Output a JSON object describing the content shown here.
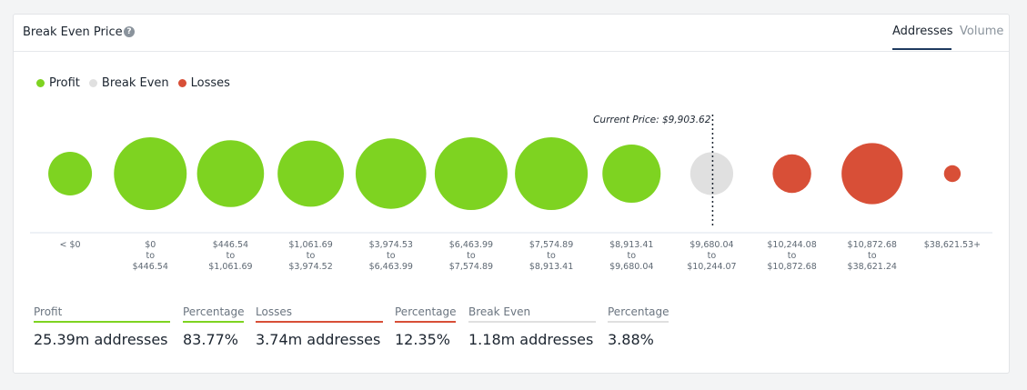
{
  "header": {
    "title": "Break Even Price",
    "help_icon": "question-circle-icon",
    "tabs": [
      {
        "label": "Addresses",
        "active": true
      },
      {
        "label": "Volume",
        "active": false
      }
    ]
  },
  "colors": {
    "profit": "#7ed321",
    "break_even": "#e0e0e0",
    "losses": "#d84f37",
    "accent": "#1e3a5f"
  },
  "legend": {
    "profit": "Profit",
    "break_even": "Break Even",
    "losses": "Losses"
  },
  "chart_data": {
    "type": "bubble",
    "current_price_label": "Current Price: $9,903.62",
    "current_price": 9903.62,
    "buckets": [
      {
        "range": [
          "< $0"
        ],
        "status": "profit",
        "size": 0.6
      },
      {
        "range": [
          "$0",
          "to",
          "$446.54"
        ],
        "status": "profit",
        "size": 1.0
      },
      {
        "range": [
          "$446.54",
          "to",
          "$1,061.69"
        ],
        "status": "profit",
        "size": 0.92
      },
      {
        "range": [
          "$1,061.69",
          "to",
          "$3,974.52"
        ],
        "status": "profit",
        "size": 0.91
      },
      {
        "range": [
          "$3,974.53",
          "to",
          "$6,463.99"
        ],
        "status": "profit",
        "size": 0.97
      },
      {
        "range": [
          "$6,463.99",
          "to",
          "$7,574.89"
        ],
        "status": "profit",
        "size": 1.0
      },
      {
        "range": [
          "$7,574.89",
          "to",
          "$8,913.41"
        ],
        "status": "profit",
        "size": 1.0
      },
      {
        "range": [
          "$8,913.41",
          "to",
          "$9,680.04"
        ],
        "status": "profit",
        "size": 0.8
      },
      {
        "range": [
          "$9,680.04",
          "to",
          "$10,244.07"
        ],
        "status": "break_even",
        "size": 0.59
      },
      {
        "range": [
          "$10,244.08",
          "to",
          "$10,872.68"
        ],
        "status": "losses",
        "size": 0.53
      },
      {
        "range": [
          "$10,872.68",
          "to",
          "$38,621.24"
        ],
        "status": "losses",
        "size": 0.84
      },
      {
        "range": [
          "$38,621.53+"
        ],
        "status": "losses",
        "size": 0.23
      }
    ]
  },
  "stats": [
    {
      "label": "Profit",
      "value": "25.39m addresses",
      "color": "#7ed321"
    },
    {
      "label": "Percentage",
      "value": "83.77%",
      "color": "#7ed321"
    },
    {
      "label": "Losses",
      "value": "3.74m addresses",
      "color": "#d84f37"
    },
    {
      "label": "Percentage",
      "value": "12.35%",
      "color": "#d84f37"
    },
    {
      "label": "Break Even",
      "value": "1.18m addresses",
      "color": "#e0e0e0"
    },
    {
      "label": "Percentage",
      "value": "3.88%",
      "color": "#e0e0e0"
    }
  ]
}
